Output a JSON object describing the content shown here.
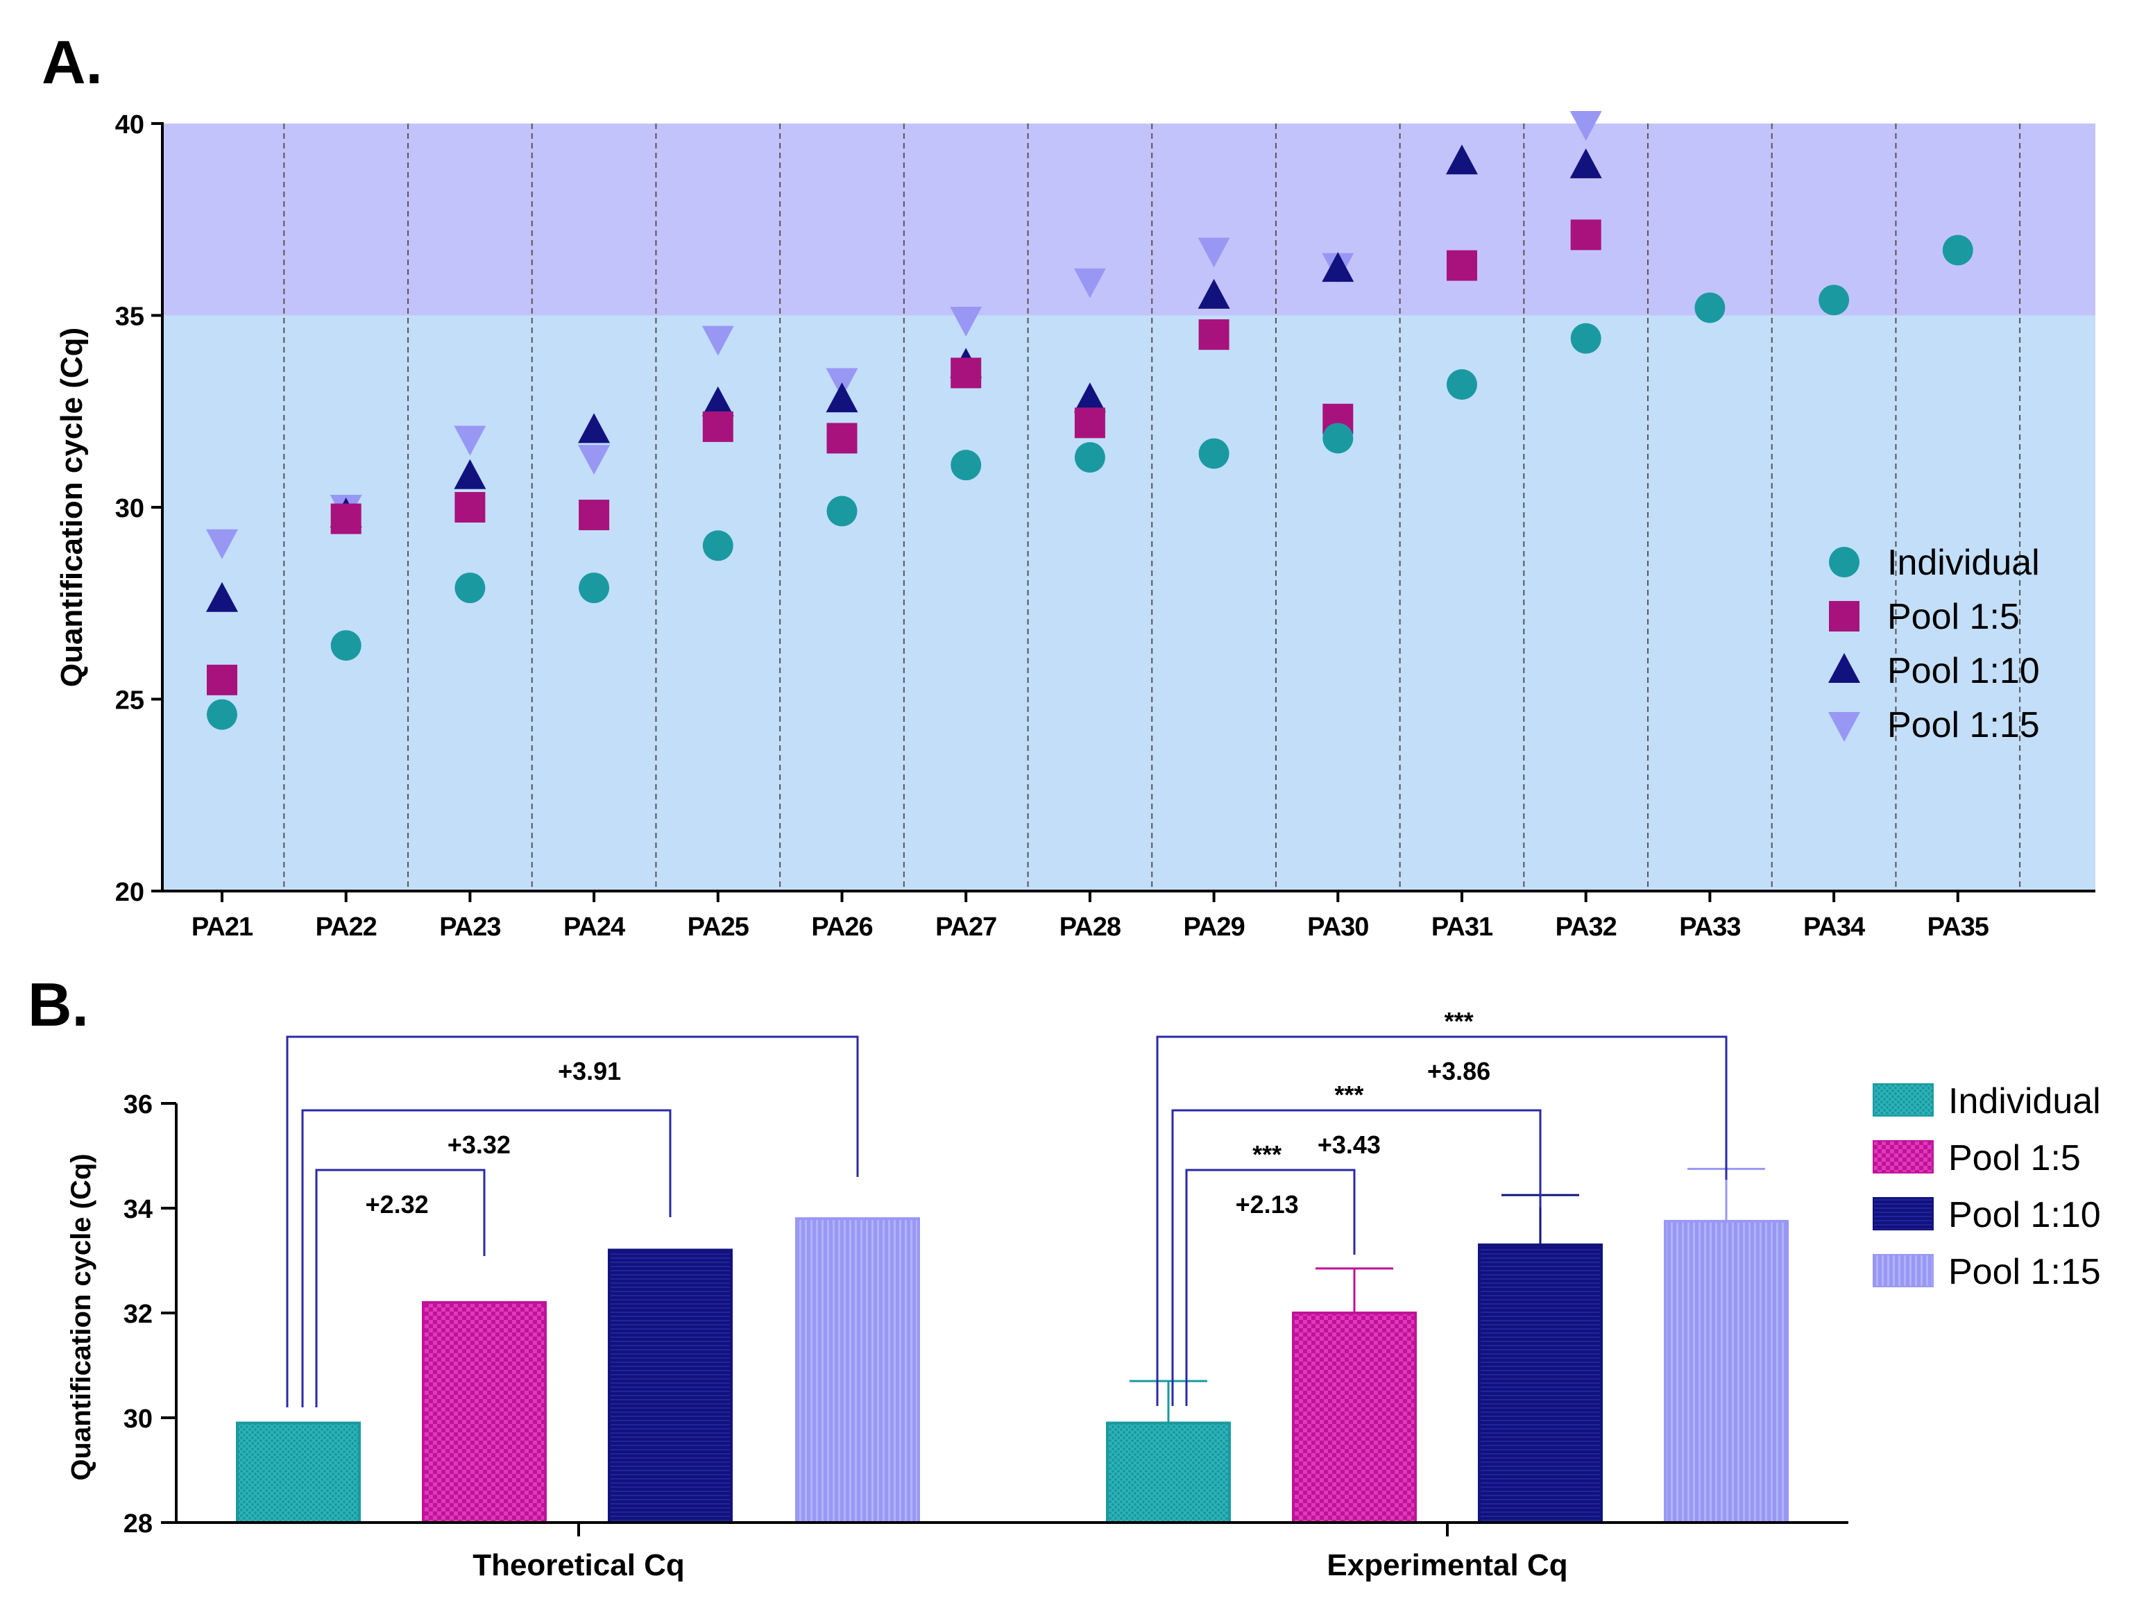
{
  "panel_a_label": "A.",
  "panel_b_label": "B.",
  "chart_data": [
    {
      "type": "scatter",
      "panel": "A",
      "ylabel": "Quantification cycle (Cq)",
      "ylim": [
        20,
        40
      ],
      "yticks": [
        "20",
        "25",
        "30",
        "35",
        "40"
      ],
      "threshold_cq": 35,
      "categories": [
        "PA21",
        "PA22",
        "PA23",
        "PA24",
        "PA25",
        "PA26",
        "PA27",
        "PA28",
        "PA29",
        "PA30",
        "PA31",
        "PA32",
        "PA33",
        "PA34",
        "PA35"
      ],
      "series": [
        {
          "name": "Individual",
          "marker": "circle",
          "color": "#1a9aa0",
          "values": [
            24.6,
            26.4,
            27.9,
            27.9,
            29.0,
            29.9,
            31.1,
            31.3,
            31.4,
            31.8,
            33.2,
            34.4,
            35.2,
            35.4,
            36.7
          ]
        },
        {
          "name": "Pool 1:5",
          "marker": "square",
          "color": "#a8127c",
          "values": [
            25.5,
            29.7,
            30.0,
            29.8,
            32.1,
            31.8,
            33.5,
            32.2,
            34.5,
            32.3,
            36.3,
            37.1,
            null,
            null,
            null
          ]
        },
        {
          "name": "Pool 1:10",
          "marker": "triangle-up",
          "color": "#12127e",
          "values": [
            27.6,
            29.8,
            30.8,
            32.0,
            32.7,
            32.8,
            33.7,
            32.8,
            35.5,
            36.2,
            39.0,
            38.9,
            null,
            null,
            null
          ]
        },
        {
          "name": "Pool 1:15",
          "marker": "triangle-down",
          "color": "#9898f4",
          "values": [
            29.1,
            30.0,
            31.8,
            31.3,
            34.4,
            33.3,
            34.9,
            35.9,
            36.7,
            36.3,
            null,
            40.0,
            null,
            null,
            null
          ]
        }
      ],
      "legend": [
        "Individual",
        "Pool 1:5",
        "Pool 1:10",
        "Pool 1:15"
      ],
      "legend_position": "right"
    },
    {
      "type": "bar",
      "panel": "B",
      "ylabel": "Quantification cycle (Cq)",
      "ylim": [
        28,
        36
      ],
      "yticks": [
        "28",
        "30",
        "32",
        "34",
        "36"
      ],
      "categories": [
        "Theoretical Cq",
        "Experimental Cq"
      ],
      "series": [
        {
          "name": "Individual",
          "color": "#1a9aa0",
          "values": [
            29.9,
            29.9
          ],
          "error": [
            null,
            0.8
          ]
        },
        {
          "name": "Pool 1:5",
          "color": "#c0129a",
          "values": [
            32.2,
            32.0
          ],
          "error": [
            null,
            0.85
          ]
        },
        {
          "name": "Pool 1:10",
          "color": "#12127e",
          "values": [
            33.2,
            33.3
          ],
          "error": [
            null,
            0.95
          ]
        },
        {
          "name": "Pool 1:15",
          "color": "#9898f4",
          "values": [
            33.8,
            33.75
          ],
          "error": [
            null,
            1.0
          ]
        }
      ],
      "comparisons": [
        {
          "group": 0,
          "to_series": 1,
          "label": "+2.32",
          "stars": ""
        },
        {
          "group": 0,
          "to_series": 2,
          "label": "+3.32",
          "stars": ""
        },
        {
          "group": 0,
          "to_series": 3,
          "label": "+3.91",
          "stars": ""
        },
        {
          "group": 1,
          "to_series": 1,
          "label": "+2.13",
          "stars": "***"
        },
        {
          "group": 1,
          "to_series": 2,
          "label": "+3.43",
          "stars": "***"
        },
        {
          "group": 1,
          "to_series": 3,
          "label": "+3.86",
          "stars": "***"
        }
      ],
      "legend": [
        "Individual",
        "Pool 1:5",
        "Pool 1:10",
        "Pool 1:15"
      ],
      "legend_position": "right"
    }
  ]
}
